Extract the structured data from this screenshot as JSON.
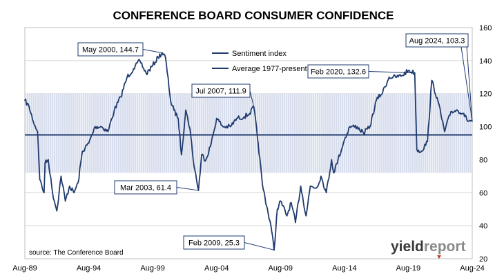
{
  "chart_data": {
    "type": "line",
    "title": "CONFERENCE BOARD CONSUMER CONFIDENCE",
    "xlabel": "",
    "ylabel": "",
    "x_tick_labels": [
      "Aug-89",
      "Aug-94",
      "Aug-99",
      "Aug-04",
      "Aug-09",
      "Aug-14",
      "Aug-19",
      "Aug-24"
    ],
    "y_ticks": [
      20,
      40,
      60,
      80,
      100,
      120,
      140,
      160
    ],
    "ylim": [
      20,
      160
    ],
    "xlim": [
      "1989-08",
      "2024-08"
    ],
    "y_axis_side": "right",
    "grid": "horizontal",
    "legend_placement": "top-center",
    "shaded_band": [
      72,
      120
    ],
    "series": [
      {
        "name": "Sentiment index",
        "color": "#1f3a6e",
        "x": [
          "1989-08",
          "1989-12",
          "1990-04",
          "1990-08",
          "1990-10",
          "1991-02",
          "1991-03",
          "1991-06",
          "1991-10",
          "1992-02",
          "1992-06",
          "1992-10",
          "1993-02",
          "1993-06",
          "1993-10",
          "1994-02",
          "1994-08",
          "1995-02",
          "1995-08",
          "1996-02",
          "1996-08",
          "1997-02",
          "1997-08",
          "1998-02",
          "1998-08",
          "1999-02",
          "1999-08",
          "2000-01",
          "2000-05",
          "2000-08",
          "2001-01",
          "2001-04",
          "2001-08",
          "2001-11",
          "2002-03",
          "2002-07",
          "2002-10",
          "2003-03",
          "2003-06",
          "2003-10",
          "2004-03",
          "2004-08",
          "2005-02",
          "2005-09",
          "2006-03",
          "2006-10",
          "2007-03",
          "2007-07",
          "2007-11",
          "2008-03",
          "2008-07",
          "2008-11",
          "2009-02",
          "2009-05",
          "2009-08",
          "2010-02",
          "2010-06",
          "2010-10",
          "2011-03",
          "2011-08",
          "2011-12",
          "2012-06",
          "2012-10",
          "2013-03",
          "2013-08",
          "2013-10",
          "2014-02",
          "2014-08",
          "2015-01",
          "2015-08",
          "2016-02",
          "2016-08",
          "2017-02",
          "2017-08",
          "2018-02",
          "2018-08",
          "2019-02",
          "2019-08",
          "2020-02",
          "2020-04",
          "2020-08",
          "2021-02",
          "2021-06",
          "2021-12",
          "2022-06",
          "2022-12",
          "2023-06",
          "2023-12",
          "2024-03",
          "2024-08"
        ],
        "values": [
          116,
          112,
          103,
          97,
          68,
          60,
          78,
          80,
          60,
          49,
          70,
          55,
          64,
          60,
          66,
          85,
          90,
          100,
          100,
          97,
          110,
          118,
          130,
          135,
          140,
          132,
          137,
          142,
          144.7,
          142,
          115,
          110,
          105,
          83,
          110,
          99,
          80,
          61.4,
          83,
          80,
          90,
          105,
          100,
          100,
          105,
          106,
          108,
          111.9,
          90,
          65,
          52,
          40,
          25.3,
          50,
          55,
          46,
          54,
          42,
          64,
          46,
          64,
          63,
          70,
          60,
          80,
          72,
          80,
          92,
          100,
          100,
          96,
          100,
          116,
          121,
          130,
          130,
          131,
          134,
          132.6,
          86,
          85,
          91,
          128,
          115,
          97,
          109,
          110,
          108,
          104,
          103.3
        ]
      },
      {
        "name": "Average 1977-present",
        "color": "#1f3a6e",
        "x": [
          "1989-08",
          "2024-08"
        ],
        "values": [
          95,
          95
        ]
      }
    ],
    "annotations": [
      {
        "label": "May 2000, 144.7",
        "x": "2000-05",
        "y": 144.7
      },
      {
        "label": "Mar 2003, 61.4",
        "x": "2003-03",
        "y": 61.4
      },
      {
        "label": "Jul 2007, 111.9",
        "x": "2007-07",
        "y": 111.9
      },
      {
        "label": "Feb 2009, 25.3",
        "x": "2009-02",
        "y": 25.3
      },
      {
        "label": "Feb 2020, 132.6",
        "x": "2020-02",
        "y": 132.6
      },
      {
        "label": "Aug 2024, 103.3",
        "x": "2024-08",
        "y": 103.3
      }
    ]
  },
  "source": "source: The Conference Board",
  "logo": {
    "part1": "yield",
    "part2": "report"
  }
}
